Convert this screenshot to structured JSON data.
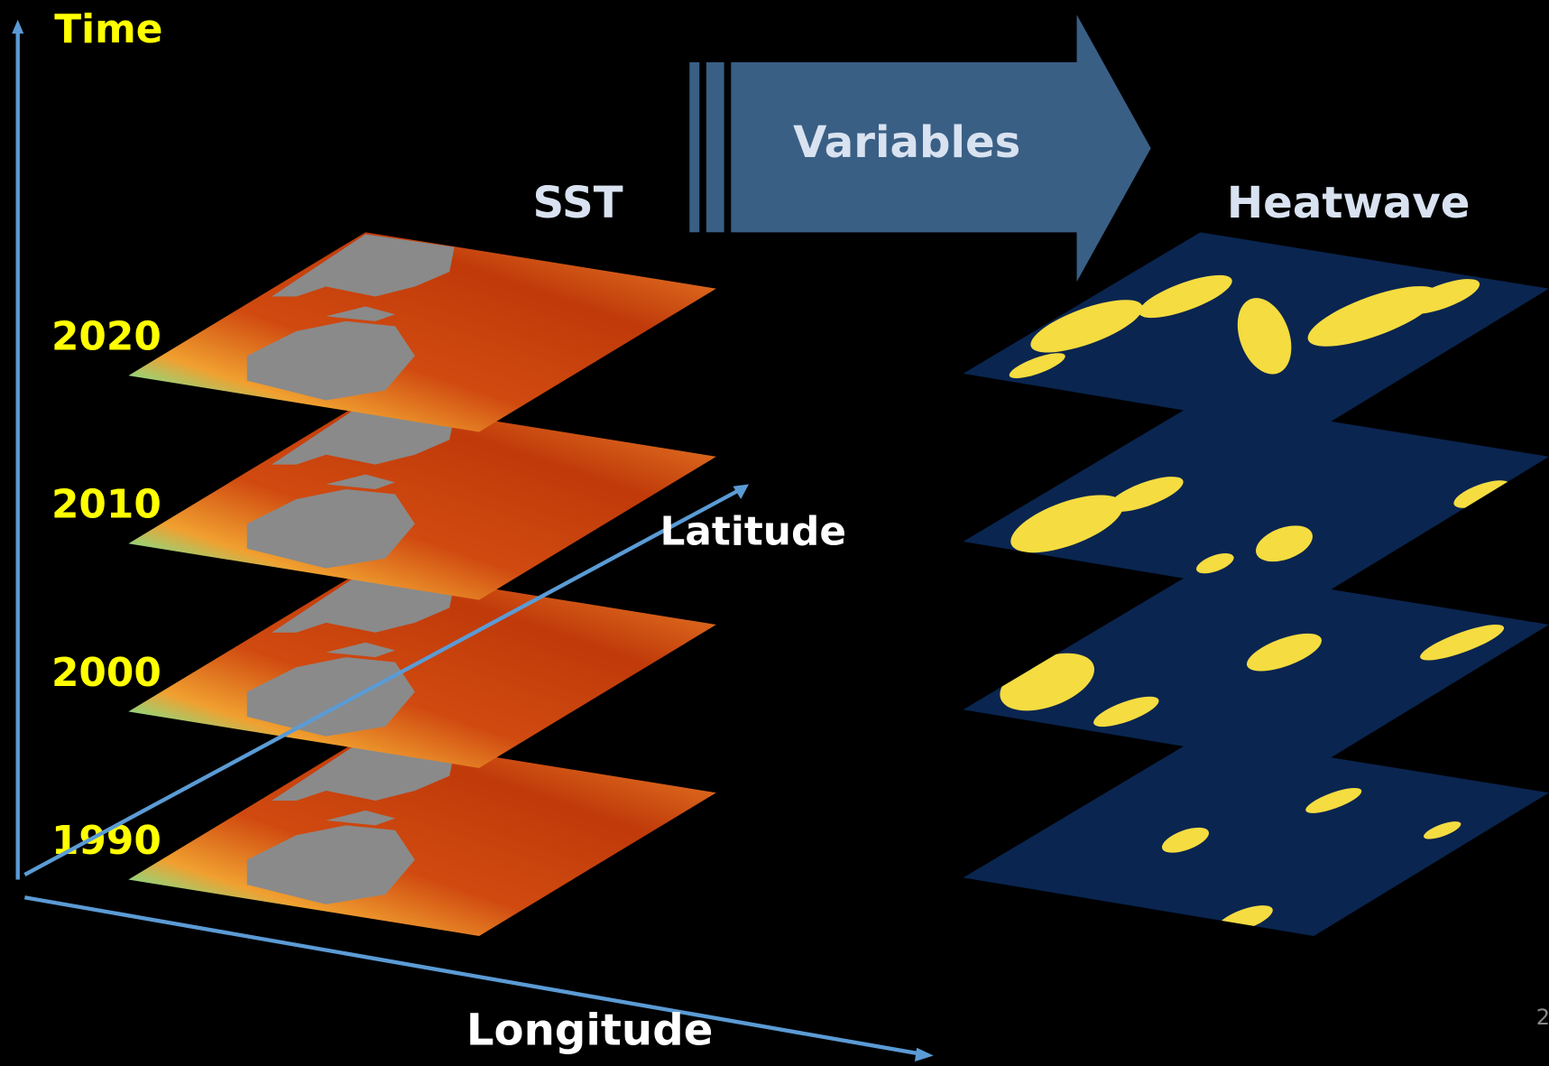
{
  "axes": {
    "time": "Time",
    "latitude": "Latitude",
    "longitude": "Longitude"
  },
  "arrow": {
    "label": "Variables"
  },
  "panels": {
    "left": {
      "title": "SST",
      "layers": [
        "2020",
        "2010",
        "2000",
        "1990"
      ]
    },
    "right": {
      "title": "Heatwave"
    }
  },
  "page_number": "2"
}
